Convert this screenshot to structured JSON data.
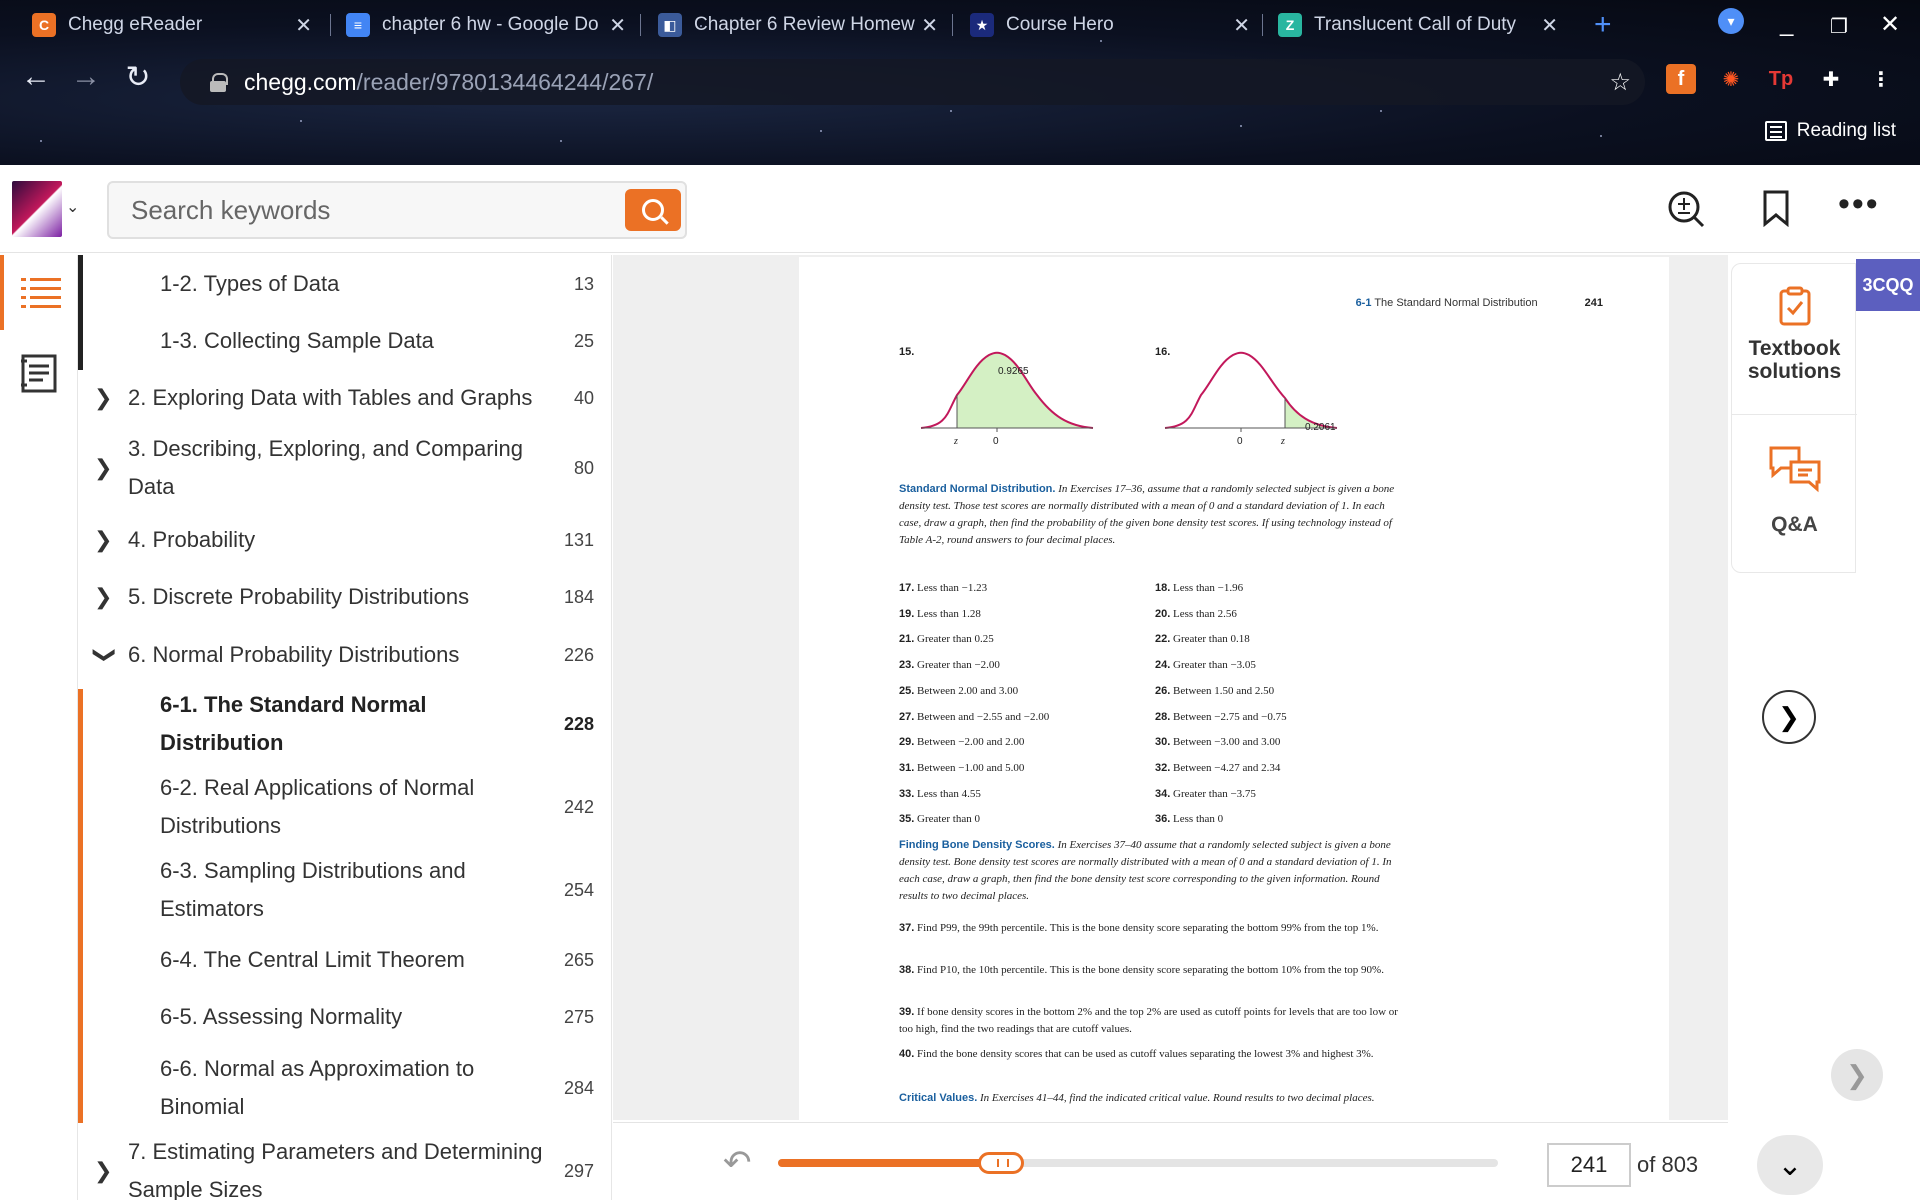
{
  "browser": {
    "tabs": [
      {
        "title": "Chegg eReader",
        "icon": "chegg-icon",
        "color": "#eb7125",
        "letter": "C"
      },
      {
        "title": "chapter 6 hw - Google Do",
        "icon": "google-docs-icon",
        "color": "#4285f4",
        "letter": "≡"
      },
      {
        "title": "Chapter 6 Review Homew",
        "icon": "pdf-icon",
        "color": "#3b5b9a",
        "letter": "◧"
      },
      {
        "title": "Course Hero",
        "icon": "course-hero-icon",
        "color": "#1b2a7b",
        "letter": "★"
      },
      {
        "title": "Translucent Call of Duty",
        "icon": "translucent-icon",
        "color": "#29b6a0",
        "letter": "Z"
      }
    ],
    "address": {
      "domain": "chegg.com",
      "path": "/reader/9780134464244/267/"
    },
    "reading_list": "Reading list"
  },
  "header": {
    "search_placeholder": "Search keywords"
  },
  "toc": {
    "items": [
      {
        "label": "1-2. Types of Data",
        "page": "13",
        "level": 2,
        "chev": ""
      },
      {
        "label": "1-3. Collecting Sample Data",
        "page": "25",
        "level": 2,
        "chev": ""
      },
      {
        "label": "2. Exploring Data with Tables and Graphs",
        "page": "40",
        "level": 1,
        "chev": ">"
      },
      {
        "label": "3. Describing, Exploring, and Comparing Data",
        "page": "80",
        "level": 1,
        "chev": ">"
      },
      {
        "label": "4. Probability",
        "page": "131",
        "level": 1,
        "chev": ">"
      },
      {
        "label": "5. Discrete Probability Distributions",
        "page": "184",
        "level": 1,
        "chev": ">"
      },
      {
        "label": "6. Normal Probability Distributions",
        "page": "226",
        "level": 1,
        "chev": "v"
      },
      {
        "label": "6-1. The Standard Normal Distribution",
        "page": "228",
        "level": 2,
        "chev": ""
      },
      {
        "label": "6-2. Real Applications of Normal Distributions",
        "page": "242",
        "level": 2,
        "chev": ""
      },
      {
        "label": "6-3. Sampling Distributions and Estimators",
        "page": "254",
        "level": 2,
        "chev": ""
      },
      {
        "label": "6-4. The Central Limit Theorem",
        "page": "265",
        "level": 2,
        "chev": ""
      },
      {
        "label": "6-5. Assessing Normality",
        "page": "275",
        "level": 2,
        "chev": ""
      },
      {
        "label": "6-6. Normal as Approximation to Binomial",
        "page": "284",
        "level": 2,
        "chev": ""
      },
      {
        "label": "7. Estimating Parameters and Determining Sample Sizes",
        "page": "297",
        "level": 1,
        "chev": ">"
      }
    ]
  },
  "textbook_page": {
    "section_ref": "6-1",
    "running_head": "The Standard Normal Distribution",
    "page_number": "241",
    "fig15": {
      "num": "15.",
      "value": "0.9265",
      "z": "z",
      "zero": "0"
    },
    "fig16": {
      "num": "16.",
      "value": "0.2061",
      "z": "z",
      "zero": "0"
    },
    "standard_normal": {
      "title": "Standard Normal Distribution.",
      "text": "In Exercises 17–36, assume that a randomly selected subject is given a bone density test. Those test scores are normally distributed with a mean of 0 and a standard deviation of 1. In each case, draw a graph, then find the probability of the given bone density test scores. If using technology instead of Table A-2, round answers to four decimal places."
    },
    "exercises": [
      {
        "n": "17.",
        "t": "Less than −1.23"
      },
      {
        "n": "18.",
        "t": "Less than −1.96"
      },
      {
        "n": "19.",
        "t": "Less than 1.28"
      },
      {
        "n": "20.",
        "t": "Less than 2.56"
      },
      {
        "n": "21.",
        "t": "Greater than 0.25"
      },
      {
        "n": "22.",
        "t": "Greater than 0.18"
      },
      {
        "n": "23.",
        "t": "Greater than −2.00"
      },
      {
        "n": "24.",
        "t": "Greater than −3.05"
      },
      {
        "n": "25.",
        "t": "Between 2.00 and 3.00"
      },
      {
        "n": "26.",
        "t": "Between 1.50 and 2.50"
      },
      {
        "n": "27.",
        "t": "Between and −2.55 and −2.00"
      },
      {
        "n": "28.",
        "t": "Between −2.75 and −0.75"
      },
      {
        "n": "29.",
        "t": "Between −2.00 and 2.00"
      },
      {
        "n": "30.",
        "t": "Between −3.00 and 3.00"
      },
      {
        "n": "31.",
        "t": "Between −1.00 and 5.00"
      },
      {
        "n": "32.",
        "t": "Between −4.27 and 2.34"
      },
      {
        "n": "33.",
        "t": "Less than 4.55"
      },
      {
        "n": "34.",
        "t": "Greater than −3.75"
      },
      {
        "n": "35.",
        "t": "Greater than 0"
      },
      {
        "n": "36.",
        "t": "Less than 0"
      }
    ],
    "bone_density": {
      "title": "Finding Bone Density Scores.",
      "text": "In Exercises 37–40 assume that a randomly selected subject is given a bone density test. Bone density test scores are normally distributed with a mean of 0 and a standard deviation of 1. In each case, draw a graph, then find the bone density test score corresponding to the given information. Round results to two decimal places."
    },
    "problems": [
      {
        "n": "37.",
        "t": "Find P99, the 99th percentile. This is the bone density score separating the bottom 99% from the top 1%."
      },
      {
        "n": "38.",
        "t": "Find P10, the 10th percentile. This is the bone density score separating the bottom 10% from the top 90%."
      },
      {
        "n": "39.",
        "t": "If bone density scores in the bottom 2% and the top 2% are used as cutoff points for levels that are too low or too high, find the two readings that are cutoff values."
      },
      {
        "n": "40.",
        "t": "Find the bone density scores that can be used as cutoff values separating the lowest 3% and highest 3%."
      }
    ],
    "critical": {
      "title": "Critical Values.",
      "text": "In Exercises 41–44, find the indicated critical value. Round results to two decimal places."
    }
  },
  "right_panel": {
    "badge": "3CQQ",
    "textbook_solutions": "Textbook solutions",
    "qa": "Q&A"
  },
  "footer": {
    "current_page": "241",
    "of_label": "of 803",
    "progress": 0.31
  },
  "colors": {
    "accent": "#eb7125",
    "link_blue": "#1a5f9e",
    "badge": "#5c5fbf",
    "curve_fill": "#d4f0c4",
    "curve_line": "#c2185b"
  }
}
